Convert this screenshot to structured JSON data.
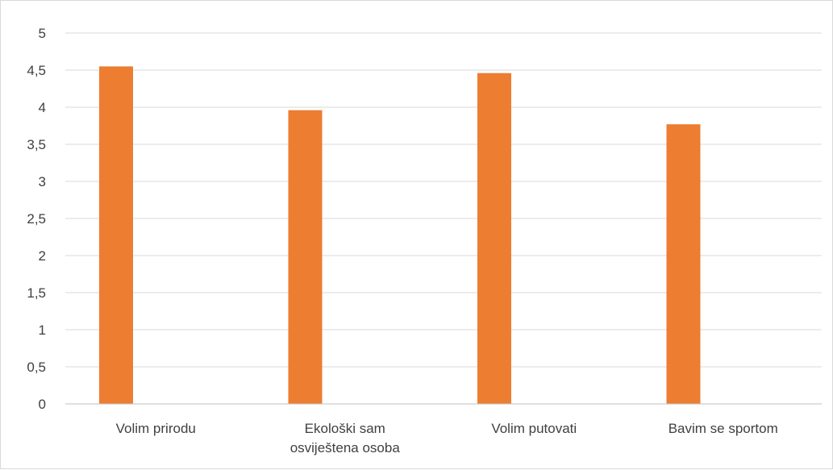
{
  "chart_data": {
    "type": "bar",
    "categories": [
      [
        "Volim prirodu"
      ],
      [
        "Ekološki sam",
        "osviještena osoba"
      ],
      [
        "Volim putovati"
      ],
      [
        "Bavim se sportom"
      ]
    ],
    "series": [
      {
        "values": [
          4.55,
          3.96,
          4.46,
          3.77
        ]
      }
    ],
    "y_ticks": [
      "0",
      "0,5",
      "1",
      "1,5",
      "2",
      "2,5",
      "3",
      "3,5",
      "4",
      "4,5",
      "5"
    ],
    "ylim": [
      0,
      5
    ],
    "grid": true,
    "legend": "none",
    "colors": {
      "bar": "#ED7D31",
      "grid": "#D9D9D9",
      "axis": "#BFBFBF",
      "text": "#404040"
    }
  }
}
